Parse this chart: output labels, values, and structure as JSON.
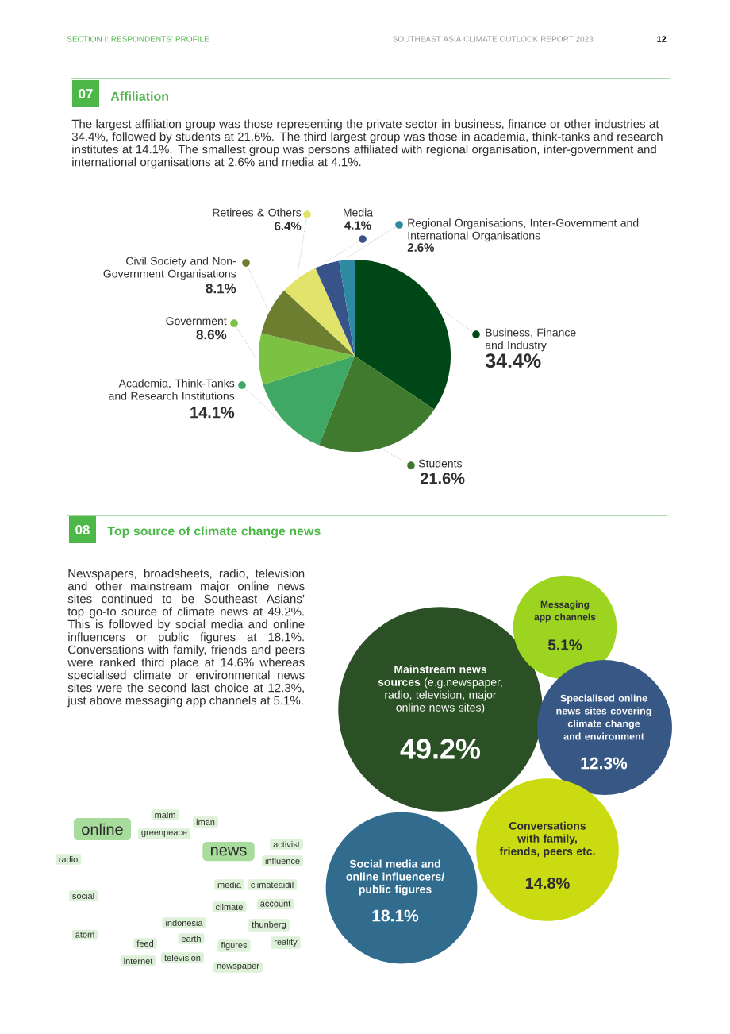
{
  "chart_data": [
    {
      "type": "pie",
      "title": "Affiliation",
      "subtitle": "The largest affiliation group was those representing the private sector in business, finance or other industries at 34.4%, followed by students at 21.6%. The third largest group was those in academia, think-tanks and research institutes at 14.1%. The smallest group was persons affiliated with regional organisation, inter-government and international organisations at 2.6% and media at 4.1%.",
      "annotations": [
        "SECTION I: RESPONDENTS’ PROFILE",
        "SOUTHEAST ASIA CLIMATE OUTLOOK REPORT 2023",
        "12",
        "07"
      ],
      "categories": [
        "Business, Finance and Industry",
        "Students",
        "Academia, Think-Tanks and Research Institutions",
        "Government",
        "Civil Society and Non-Government Organisations",
        "Retirees & Others",
        "Media",
        "Regional Organisations, Inter-Government and International Organisations"
      ],
      "values": [
        34.4,
        21.6,
        14.1,
        8.6,
        8.1,
        6.4,
        4.1,
        2.6
      ],
      "colors": [
        "#004717",
        "#3f7a2f",
        "#40a865",
        "#7bc242",
        "#6d7e30",
        "#e2e36b",
        "#37538a",
        "#2d8aa0"
      ],
      "value_labels": [
        "34.4%",
        "21.6%",
        "14.1%",
        "8.6%",
        "8.1%",
        "6.4%",
        "4.1%",
        "2.6%"
      ],
      "legend": "left"
    },
    {
      "type": "other",
      "title": "Top source of climate change news",
      "subtitle": "Newspapers, broadsheets, radio, television and other mainstream major online news sites continued to be Southeast Asians’ top go-to source of climate news at 49.2%. This is followed by social media and online influencers or public figures at 18.1%. Conversations with family, friends and peers were ranked third place at 14.6% whereas specialised climate or environmental news sites were the second last choice at 12.3%, just above messaging app channels at 5.1%.",
      "annotations": [
        "08"
      ],
      "categories": [
        "**Mainstream news sources** (e.g.newspaper, radio, television, major online news sites)",
        "Messaging app channels",
        "Specialised online news sites covering climate change and environment",
        "Conversations with family, friends, peers etc.",
        "Social media and online influencers/ public figures"
      ],
      "values": [
        49.2,
        5.1,
        12.3,
        14.8,
        18.1
      ],
      "colors": [
        "#2c5025",
        "#9cd420",
        "#375784",
        "#cbdb12",
        "#316c8f"
      ],
      "value_labels": [
        "49.2%",
        "5.1%",
        "12.3%",
        "14.8%",
        "18.1%"
      ]
    },
    {
      "type": "other",
      "annotations": [
        "malm",
        "online",
        "greenpeace",
        "iman",
        "news",
        "activist",
        "radio",
        "influence",
        "social",
        "media",
        "climateaidil",
        "climate",
        "account",
        "indonesia",
        "thunberg",
        "atom",
        "feed",
        "earth",
        "reality",
        "figures",
        "internet",
        "television",
        "newspaper"
      ]
    }
  ]
}
